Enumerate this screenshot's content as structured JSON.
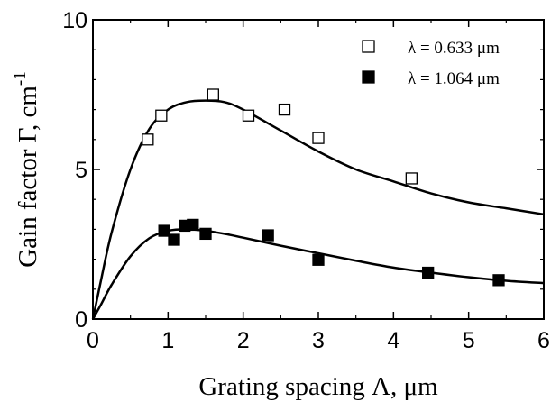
{
  "chart_data": {
    "type": "scatter",
    "xlabel": "Grating spacing  Λ,  μm",
    "ylabel": "Gain factor  Γ, cm",
    "ylabel_superscript": "-1",
    "xlim": [
      0,
      6
    ],
    "ylim": [
      0,
      10
    ],
    "x_ticks": [
      0,
      1,
      2,
      3,
      4,
      5,
      6
    ],
    "y_ticks": [
      0,
      5,
      10
    ],
    "grid": false,
    "legend_position": "top-right",
    "series": [
      {
        "name": "λ = 0.633 μm",
        "marker": "open-square",
        "color": "#000000",
        "points": [
          {
            "x": 0.73,
            "y": 6.0
          },
          {
            "x": 0.91,
            "y": 6.8
          },
          {
            "x": 1.6,
            "y": 7.5
          },
          {
            "x": 2.07,
            "y": 6.8
          },
          {
            "x": 2.55,
            "y": 7.0
          },
          {
            "x": 3.0,
            "y": 6.05
          },
          {
            "x": 4.24,
            "y": 4.7
          }
        ],
        "fit": {
          "x": [
            0.0,
            0.1,
            0.25,
            0.5,
            0.75,
            1.0,
            1.25,
            1.5,
            1.75,
            2.0,
            2.5,
            3.0,
            3.5,
            4.0,
            4.5,
            5.0,
            5.5,
            6.0
          ],
          "y": [
            0.0,
            1.2,
            2.9,
            5.0,
            6.35,
            7.0,
            7.25,
            7.3,
            7.25,
            7.0,
            6.3,
            5.6,
            5.0,
            4.6,
            4.2,
            3.9,
            3.7,
            3.5
          ]
        }
      },
      {
        "name": "λ = 1.064 μm",
        "marker": "filled-square",
        "color": "#000000",
        "points": [
          {
            "x": 0.95,
            "y": 2.95
          },
          {
            "x": 1.08,
            "y": 2.65
          },
          {
            "x": 1.22,
            "y": 3.12
          },
          {
            "x": 1.33,
            "y": 3.15
          },
          {
            "x": 1.5,
            "y": 2.85
          },
          {
            "x": 2.33,
            "y": 2.8
          },
          {
            "x": 3.0,
            "y": 1.98
          },
          {
            "x": 4.46,
            "y": 1.55
          },
          {
            "x": 5.4,
            "y": 1.3
          }
        ],
        "fit": {
          "x": [
            0.0,
            0.1,
            0.25,
            0.5,
            0.75,
            1.0,
            1.25,
            1.5,
            1.75,
            2.0,
            2.5,
            3.0,
            3.5,
            4.0,
            4.5,
            5.0,
            5.5,
            6.0
          ],
          "y": [
            0.0,
            0.45,
            1.15,
            2.1,
            2.7,
            2.95,
            3.0,
            2.95,
            2.85,
            2.72,
            2.45,
            2.2,
            1.95,
            1.72,
            1.55,
            1.4,
            1.28,
            1.2
          ]
        }
      }
    ]
  }
}
